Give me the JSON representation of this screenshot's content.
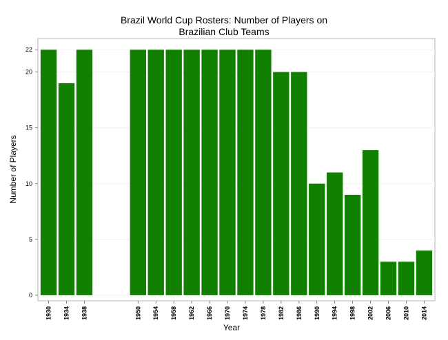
{
  "chart_data": {
    "type": "bar",
    "title_line1": "Brazil World Cup Rosters: Number of Players on",
    "title_line2": "Brazilian Club Teams",
    "xlabel": "Year",
    "ylabel": "Number of Players",
    "x": [
      1930,
      1934,
      1938,
      1950,
      1954,
      1958,
      1962,
      1966,
      1970,
      1974,
      1978,
      1982,
      1986,
      1990,
      1994,
      1998,
      2002,
      2006,
      2010,
      2014
    ],
    "values": [
      22,
      19,
      22,
      22,
      22,
      22,
      22,
      22,
      22,
      22,
      22,
      20,
      20,
      10,
      11,
      9,
      13,
      3,
      3,
      4
    ],
    "ylim": [
      -0.5,
      23
    ],
    "yticks": [
      0,
      5,
      10,
      15,
      20,
      22
    ],
    "xticks": [
      "1930",
      "1934",
      "1938",
      "1950",
      "1954",
      "1958",
      "1962",
      "1966",
      "1970",
      "1974",
      "1978",
      "1982",
      "1986",
      "1990",
      "1994",
      "1998",
      "2002",
      "2006",
      "2010",
      "2014"
    ],
    "grid": true,
    "bar_color": "#117f00"
  }
}
